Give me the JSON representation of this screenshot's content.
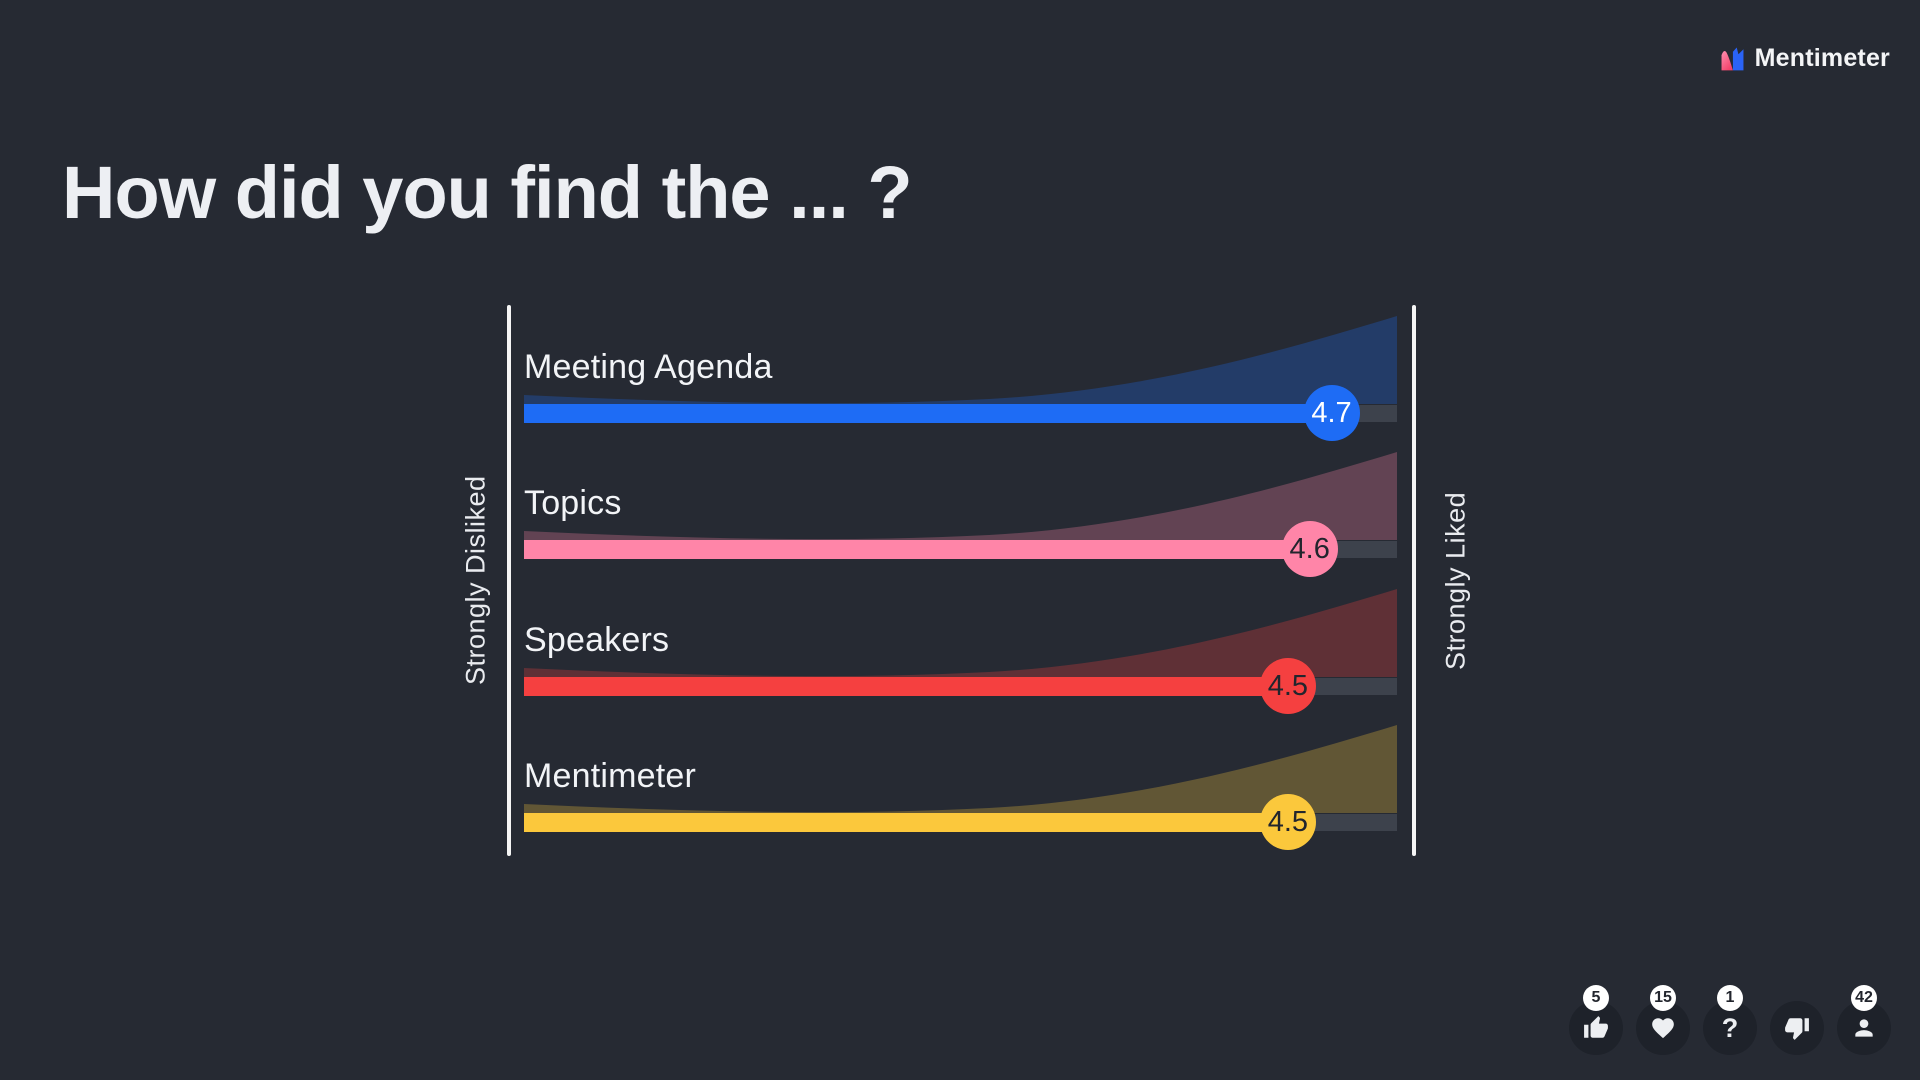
{
  "brand": {
    "logo_text": "Mentimeter"
  },
  "title": "How did you find the ... ?",
  "chart_data": {
    "type": "bar",
    "subtype": "rating-scales",
    "title": "How did you find the ... ?",
    "scale": {
      "min": 1,
      "max": 5,
      "min_label": "Strongly Disliked",
      "max_label": "Strongly Liked"
    },
    "categories": [
      "Meeting Agenda",
      "Topics",
      "Speakers",
      "Mentimeter"
    ],
    "values": [
      4.7,
      4.6,
      4.5,
      4.5
    ],
    "series": [
      {
        "name": "Meeting Agenda",
        "value": 4.7,
        "color": "#1E6CF5",
        "badge_text_color": "#FFFFFF"
      },
      {
        "name": "Topics",
        "value": 4.6,
        "color": "#FF85A8",
        "badge_text_color": "#22252D"
      },
      {
        "name": "Speakers",
        "value": 4.5,
        "color": "#F54040",
        "badge_text_color": "#22252D"
      },
      {
        "name": "Mentimeter",
        "value": 4.5,
        "color": "#FBC83C",
        "badge_text_color": "#22252D"
      }
    ],
    "legend": "none",
    "grid": false,
    "track_color": "#3D424C",
    "area_opacity": 0.28
  },
  "reactions": {
    "buttons": [
      {
        "icon": "thumbs-up",
        "count": "5"
      },
      {
        "icon": "heart",
        "count": "15"
      },
      {
        "icon": "question-mark",
        "count": "1"
      },
      {
        "icon": "thumbs-down",
        "count": null
      },
      {
        "icon": "person",
        "count": "42"
      }
    ]
  },
  "colors": {
    "background": "#262A33",
    "text": "#EDEFF3",
    "axis_line": "#F5F5F5"
  }
}
